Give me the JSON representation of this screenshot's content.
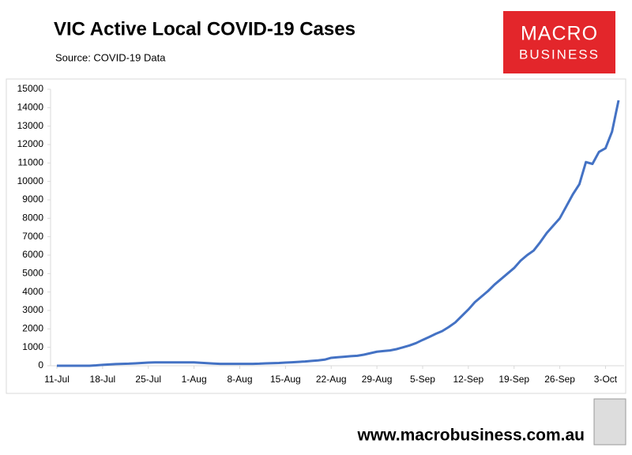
{
  "chart_data": {
    "type": "line",
    "title": "VIC Active Local COVID-19 Cases",
    "subtitle": "Source: COVID-19 Data",
    "categories": [
      "11-Jul",
      null,
      null,
      null,
      null,
      null,
      null,
      "18-Jul",
      null,
      null,
      null,
      null,
      null,
      null,
      "25-Jul",
      null,
      null,
      null,
      null,
      null,
      null,
      "1-Aug",
      null,
      null,
      null,
      null,
      null,
      null,
      "8-Aug",
      null,
      null,
      null,
      null,
      null,
      null,
      "15-Aug",
      null,
      null,
      null,
      null,
      null,
      null,
      "22-Aug",
      null,
      null,
      null,
      null,
      null,
      null,
      "29-Aug",
      null,
      null,
      null,
      null,
      null,
      null,
      "5-Sep",
      null,
      null,
      null,
      null,
      null,
      null,
      "12-Sep",
      null,
      null,
      null,
      null,
      null,
      null,
      "19-Sep",
      null,
      null,
      null,
      null,
      null,
      null,
      "26-Sep",
      null,
      null,
      null,
      null,
      null,
      null,
      "3-Oct",
      null,
      null
    ],
    "values": [
      0,
      0,
      0,
      0,
      0,
      0,
      20,
      50,
      70,
      90,
      100,
      110,
      130,
      150,
      170,
      180,
      180,
      180,
      180,
      180,
      180,
      180,
      160,
      140,
      120,
      100,
      100,
      100,
      100,
      100,
      100,
      110,
      130,
      140,
      150,
      170,
      190,
      210,
      230,
      260,
      290,
      330,
      430,
      460,
      490,
      520,
      540,
      600,
      680,
      760,
      800,
      830,
      900,
      1000,
      1100,
      1230,
      1400,
      1560,
      1730,
      1880,
      2100,
      2350,
      2700,
      3050,
      3450,
      3750,
      4050,
      4400,
      4700,
      5000,
      5300,
      5700,
      6000,
      6250,
      6700,
      7200,
      7600,
      8000,
      8650,
      9300,
      9850,
      11050,
      10950,
      11600,
      11800,
      12700,
      14400
    ],
    "color": "#4472c4",
    "ylim": [
      0,
      15000
    ],
    "yticks": [
      0,
      1000,
      2000,
      3000,
      4000,
      5000,
      6000,
      7000,
      8000,
      9000,
      10000,
      11000,
      12000,
      13000,
      14000,
      15000
    ],
    "grid": false
  },
  "logo_text": [
    "MACRO",
    "BUSINESS"
  ],
  "website": "www.macrobusiness.com.au"
}
